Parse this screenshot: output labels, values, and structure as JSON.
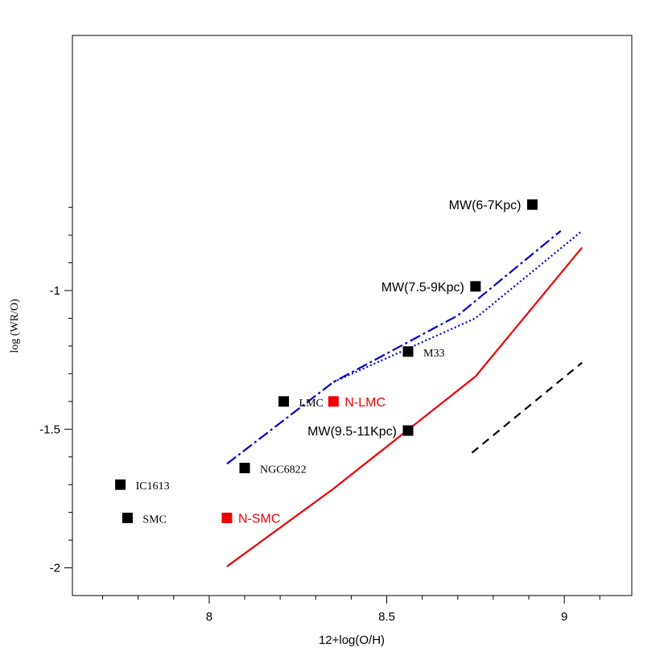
{
  "chart_data": {
    "type": "scatter",
    "title": "",
    "xlabel": "12+log(O/H)",
    "ylabel": "log (WR/O)",
    "xlim": [
      7.615,
      9.19
    ],
    "ylim": [
      -2.1,
      -0.08
    ],
    "xticks": [
      8,
      8.5,
      9
    ],
    "xtick_labels": [
      "8",
      "8.5",
      "9"
    ],
    "xminor": [
      7.7,
      7.8,
      7.9,
      8.1,
      8.2,
      8.3,
      8.4,
      8.6,
      8.7,
      8.8,
      8.9,
      9.1
    ],
    "yticks": [
      -2,
      -1.5,
      -1
    ],
    "ytick_labels": [
      "-2",
      "-1.5",
      "-1"
    ],
    "yminor": [
      -1.9,
      -1.8,
      -1.7,
      -1.6,
      -1.4,
      -1.3,
      -1.2,
      -1.1,
      -0.9,
      -0.8,
      -0.7
    ],
    "grid": false,
    "points": [
      {
        "label": "MW(6-7Kpc)",
        "x": 8.91,
        "y": -0.69,
        "color": "#000000",
        "font": "sans",
        "side": "left"
      },
      {
        "label": "MW(7.5-9Kpc)",
        "x": 8.75,
        "y": -0.985,
        "color": "#000000",
        "font": "sans",
        "side": "left"
      },
      {
        "label": "M33",
        "x": 8.56,
        "y": -1.22,
        "color": "#000000",
        "font": "serif",
        "side": "right"
      },
      {
        "label": "LMC",
        "x": 8.21,
        "y": -1.4,
        "color": "#000000",
        "font": "serif",
        "side": "right"
      },
      {
        "label": "N-LMC",
        "x": 8.35,
        "y": -1.4,
        "color": "#ee0000",
        "font": "sans",
        "side": "right"
      },
      {
        "label": "MW(9.5-11Kpc)",
        "x": 8.56,
        "y": -1.505,
        "color": "#000000",
        "font": "sans",
        "side": "left"
      },
      {
        "label": "NGC6822",
        "x": 8.1,
        "y": -1.64,
        "color": "#000000",
        "font": "serif",
        "side": "right"
      },
      {
        "label": "IC1613",
        "x": 7.75,
        "y": -1.7,
        "color": "#000000",
        "font": "serif",
        "side": "right"
      },
      {
        "label": "SMC",
        "x": 7.77,
        "y": -1.82,
        "color": "#000000",
        "font": "serif",
        "side": "right"
      },
      {
        "label": "N-SMC",
        "x": 8.05,
        "y": -1.82,
        "color": "#ee0000",
        "font": "sans",
        "side": "right"
      }
    ],
    "lines": [
      {
        "style": "solid",
        "color": "#ee0000",
        "x": [
          8.05,
          8.35,
          8.75,
          9.05
        ],
        "y": [
          -1.995,
          -1.715,
          -1.31,
          -0.845
        ]
      },
      {
        "style": "dashdot",
        "color": "#0000cc",
        "x": [
          8.05,
          8.35,
          8.7,
          8.99
        ],
        "y": [
          -1.625,
          -1.33,
          -1.09,
          -0.785
        ]
      },
      {
        "style": "dotted",
        "color": "#0000cc",
        "x": [
          8.35,
          8.75,
          9.05
        ],
        "y": [
          -1.33,
          -1.1,
          -0.785
        ]
      },
      {
        "style": "dashed",
        "color": "#000000",
        "x": [
          8.74,
          9.05
        ],
        "y": [
          -1.585,
          -1.26
        ]
      }
    ]
  }
}
